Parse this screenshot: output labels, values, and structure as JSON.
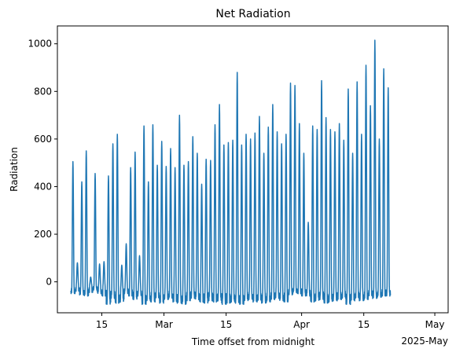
{
  "chart_data": {
    "type": "line",
    "title": "Net Radiation",
    "xlabel": "Time offset from midnight",
    "ylabel": "Radiation",
    "x_offset_label": "2025-May",
    "xlim": [
      "2025-02-05",
      "2025-05-04"
    ],
    "ylim": [
      -130,
      1075
    ],
    "xticks": [
      {
        "date": "2025-02-15",
        "label": "15"
      },
      {
        "date": "2025-03-01",
        "label": "Mar"
      },
      {
        "date": "2025-03-15",
        "label": "15"
      },
      {
        "date": "2025-04-01",
        "label": "Apr"
      },
      {
        "date": "2025-04-15",
        "label": "15"
      },
      {
        "date": "2025-05-01",
        "label": "May"
      }
    ],
    "yticks": [
      0,
      200,
      400,
      600,
      800,
      1000
    ],
    "grid": false,
    "series": [
      {
        "color": "#1f77b4",
        "sampling": "daily",
        "start_date": "2025-02-08",
        "daily_max": [
          505,
          80,
          420,
          550,
          20,
          455,
          75,
          85,
          445,
          580,
          620,
          70,
          160,
          480,
          545,
          110,
          655,
          420,
          660,
          490,
          590,
          485,
          560,
          480,
          700,
          490,
          505,
          610,
          540,
          410,
          515,
          510,
          660,
          745,
          575,
          585,
          595,
          880,
          575,
          620,
          600,
          625,
          695,
          540,
          650,
          745,
          630,
          580,
          620,
          835,
          825,
          665,
          540,
          250,
          655,
          640,
          845,
          690,
          640,
          630,
          665,
          595,
          810,
          540,
          840,
          620,
          910,
          740,
          1015,
          600,
          895,
          815
        ],
        "daily_min": [
          -50,
          -40,
          -55,
          -60,
          -45,
          -35,
          -50,
          -60,
          -95,
          -70,
          -90,
          -85,
          -50,
          -60,
          -75,
          -60,
          -95,
          -80,
          -85,
          -70,
          -90,
          -75,
          -70,
          -85,
          -90,
          -95,
          -80,
          -70,
          -75,
          -85,
          -90,
          -80,
          -85,
          -80,
          -95,
          -90,
          -85,
          -90,
          -95,
          -80,
          -75,
          -85,
          -80,
          -90,
          -85,
          -75,
          -70,
          -80,
          -85,
          -55,
          -45,
          -50,
          -60,
          -60,
          -85,
          -80,
          -75,
          -90,
          -85,
          -80,
          -75,
          -70,
          -95,
          -80,
          -70,
          -80,
          -75,
          -60,
          -70,
          -65,
          -60,
          -60
        ]
      }
    ]
  }
}
